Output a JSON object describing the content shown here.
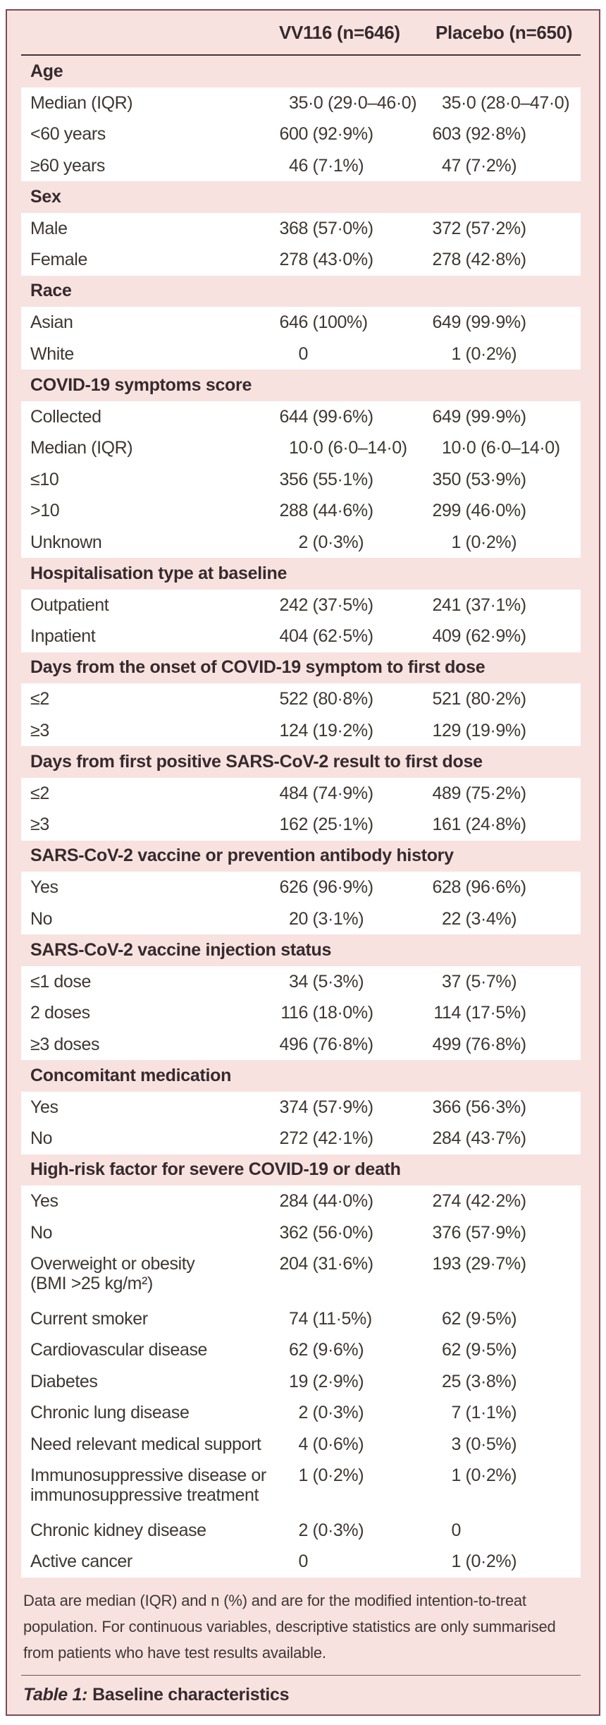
{
  "colors": {
    "page_background": "#ffffff",
    "card_background": "#f8e2df",
    "card_border": "#7d4b57",
    "header_rule": "#443337",
    "footer_rule": "#6d5459",
    "row_background": "#ffffff",
    "text": "#3e3734",
    "bold_text": "#362a2e"
  },
  "table": {
    "columns": [
      "VV116 (n=646)",
      "Placebo (n=650)"
    ],
    "sections": [
      {
        "title": "Age",
        "rows": [
          {
            "label": "Median (IQR)",
            "vv116": "35·0 (29·0–46·0)",
            "placebo": "35·0 (28·0–47·0)"
          },
          {
            "label": "<60 years",
            "vv116": "600 (92·9%)",
            "placebo": "603 (92·8%)"
          },
          {
            "label": "≥60 years",
            "vv116": "46 (7·1%)",
            "placebo": "47 (7·2%)"
          }
        ]
      },
      {
        "title": "Sex",
        "rows": [
          {
            "label": "Male",
            "vv116": "368 (57·0%)",
            "placebo": "372 (57·2%)"
          },
          {
            "label": "Female",
            "vv116": "278 (43·0%)",
            "placebo": "278 (42·8%)"
          }
        ]
      },
      {
        "title": "Race",
        "rows": [
          {
            "label": "Asian",
            "vv116": "646 (100%)",
            "placebo": "649 (99·9%)"
          },
          {
            "label": "White",
            "vv116": "0",
            "placebo": "1 (0·2%)"
          }
        ]
      },
      {
        "title": "COVID-19 symptoms score",
        "rows": [
          {
            "label": "Collected",
            "vv116": "644 (99·6%)",
            "placebo": "649 (99·9%)"
          },
          {
            "label": "Median (IQR)",
            "vv116": "10·0 (6·0–14·0)",
            "placebo": "10·0 (6·0–14·0)"
          },
          {
            "label": "≤10",
            "vv116": "356 (55·1%)",
            "placebo": "350 (53·9%)"
          },
          {
            "label": ">10",
            "vv116": "288 (44·6%)",
            "placebo": "299 (46·0%)"
          },
          {
            "label": "Unknown",
            "vv116": "2 (0·3%)",
            "placebo": "1 (0·2%)"
          }
        ]
      },
      {
        "title": "Hospitalisation type at baseline",
        "rows": [
          {
            "label": "Outpatient",
            "vv116": "242 (37·5%)",
            "placebo": "241 (37·1%)"
          },
          {
            "label": "Inpatient",
            "vv116": "404 (62·5%)",
            "placebo": "409 (62·9%)"
          }
        ]
      },
      {
        "title": "Days from the onset of COVID-19 symptom to first dose",
        "rows": [
          {
            "label": "≤2",
            "vv116": "522 (80·8%)",
            "placebo": "521 (80·2%)"
          },
          {
            "label": "≥3",
            "vv116": "124 (19·2%)",
            "placebo": "129 (19·9%)"
          }
        ]
      },
      {
        "title": "Days from first positive SARS-CoV-2 result to first dose",
        "rows": [
          {
            "label": "≤2",
            "vv116": "484 (74·9%)",
            "placebo": "489 (75·2%)"
          },
          {
            "label": "≥3",
            "vv116": "162 (25·1%)",
            "placebo": "161 (24·8%)"
          }
        ]
      },
      {
        "title": "SARS-CoV-2 vaccine or prevention antibody history",
        "rows": [
          {
            "label": "Yes",
            "vv116": "626 (96·9%)",
            "placebo": "628 (96·6%)"
          },
          {
            "label": "No",
            "vv116": "20 (3·1%)",
            "placebo": "22 (3·4%)"
          }
        ]
      },
      {
        "title": "SARS-CoV-2 vaccine injection status",
        "rows": [
          {
            "label": "≤1 dose",
            "vv116": "34 (5·3%)",
            "placebo": "37 (5·7%)"
          },
          {
            "label": "2 doses",
            "vv116": "116 (18·0%)",
            "placebo": "114 (17·5%)"
          },
          {
            "label": "≥3 doses",
            "vv116": "496 (76·8%)",
            "placebo": "499 (76·8%)"
          }
        ]
      },
      {
        "title": "Concomitant medication",
        "rows": [
          {
            "label": "Yes",
            "vv116": "374 (57·9%)",
            "placebo": "366 (56·3%)"
          },
          {
            "label": "No",
            "vv116": "272 (42·1%)",
            "placebo": "284 (43·7%)"
          }
        ]
      },
      {
        "title": "High-risk factor for severe COVID-19 or death",
        "rows": [
          {
            "label": "Yes",
            "vv116": "284 (44·0%)",
            "placebo": "274 (42·2%)"
          },
          {
            "label": "No",
            "vv116": "362 (56·0%)",
            "placebo": "376 (57·9%)"
          },
          {
            "label": "Overweight or obesity",
            "label2": "(BMI >25 kg/m²)",
            "vv116": "204 (31·6%)",
            "placebo": "193 (29·7%)"
          },
          {
            "label": "Current smoker",
            "vv116": "74 (11·5%)",
            "placebo": "62 (9·5%)"
          },
          {
            "label": "Cardiovascular disease",
            "vv116": "62 (9·6%)",
            "placebo": "62 (9·5%)"
          },
          {
            "label": "Diabetes",
            "vv116": "19 (2·9%)",
            "placebo": "25 (3·8%)"
          },
          {
            "label": "Chronic lung disease",
            "vv116": "2 (0·3%)",
            "placebo": "7 (1·1%)"
          },
          {
            "label": "Need relevant medical support",
            "vv116": "4 (0·6%)",
            "placebo": "3 (0·5%)"
          },
          {
            "label": "Immunosuppressive disease or",
            "label2": "immunosuppressive treatment",
            "vv116": "1 (0·2%)",
            "placebo": "1 (0·2%)"
          },
          {
            "label": "Chronic kidney disease",
            "vv116": "2 (0·3%)",
            "placebo": "0"
          },
          {
            "label": "Active cancer",
            "vv116": "0",
            "placebo": "1 (0·2%)"
          }
        ]
      }
    ],
    "footnote_lines": [
      "Data are median (IQR) and n (%) and are for the modified intention-to-treat",
      "population. For continuous variables, descriptive statistics are only summarised",
      "from patients who have test results available."
    ],
    "caption_label": "Table 1:",
    "caption_text": "Baseline characteristics"
  }
}
